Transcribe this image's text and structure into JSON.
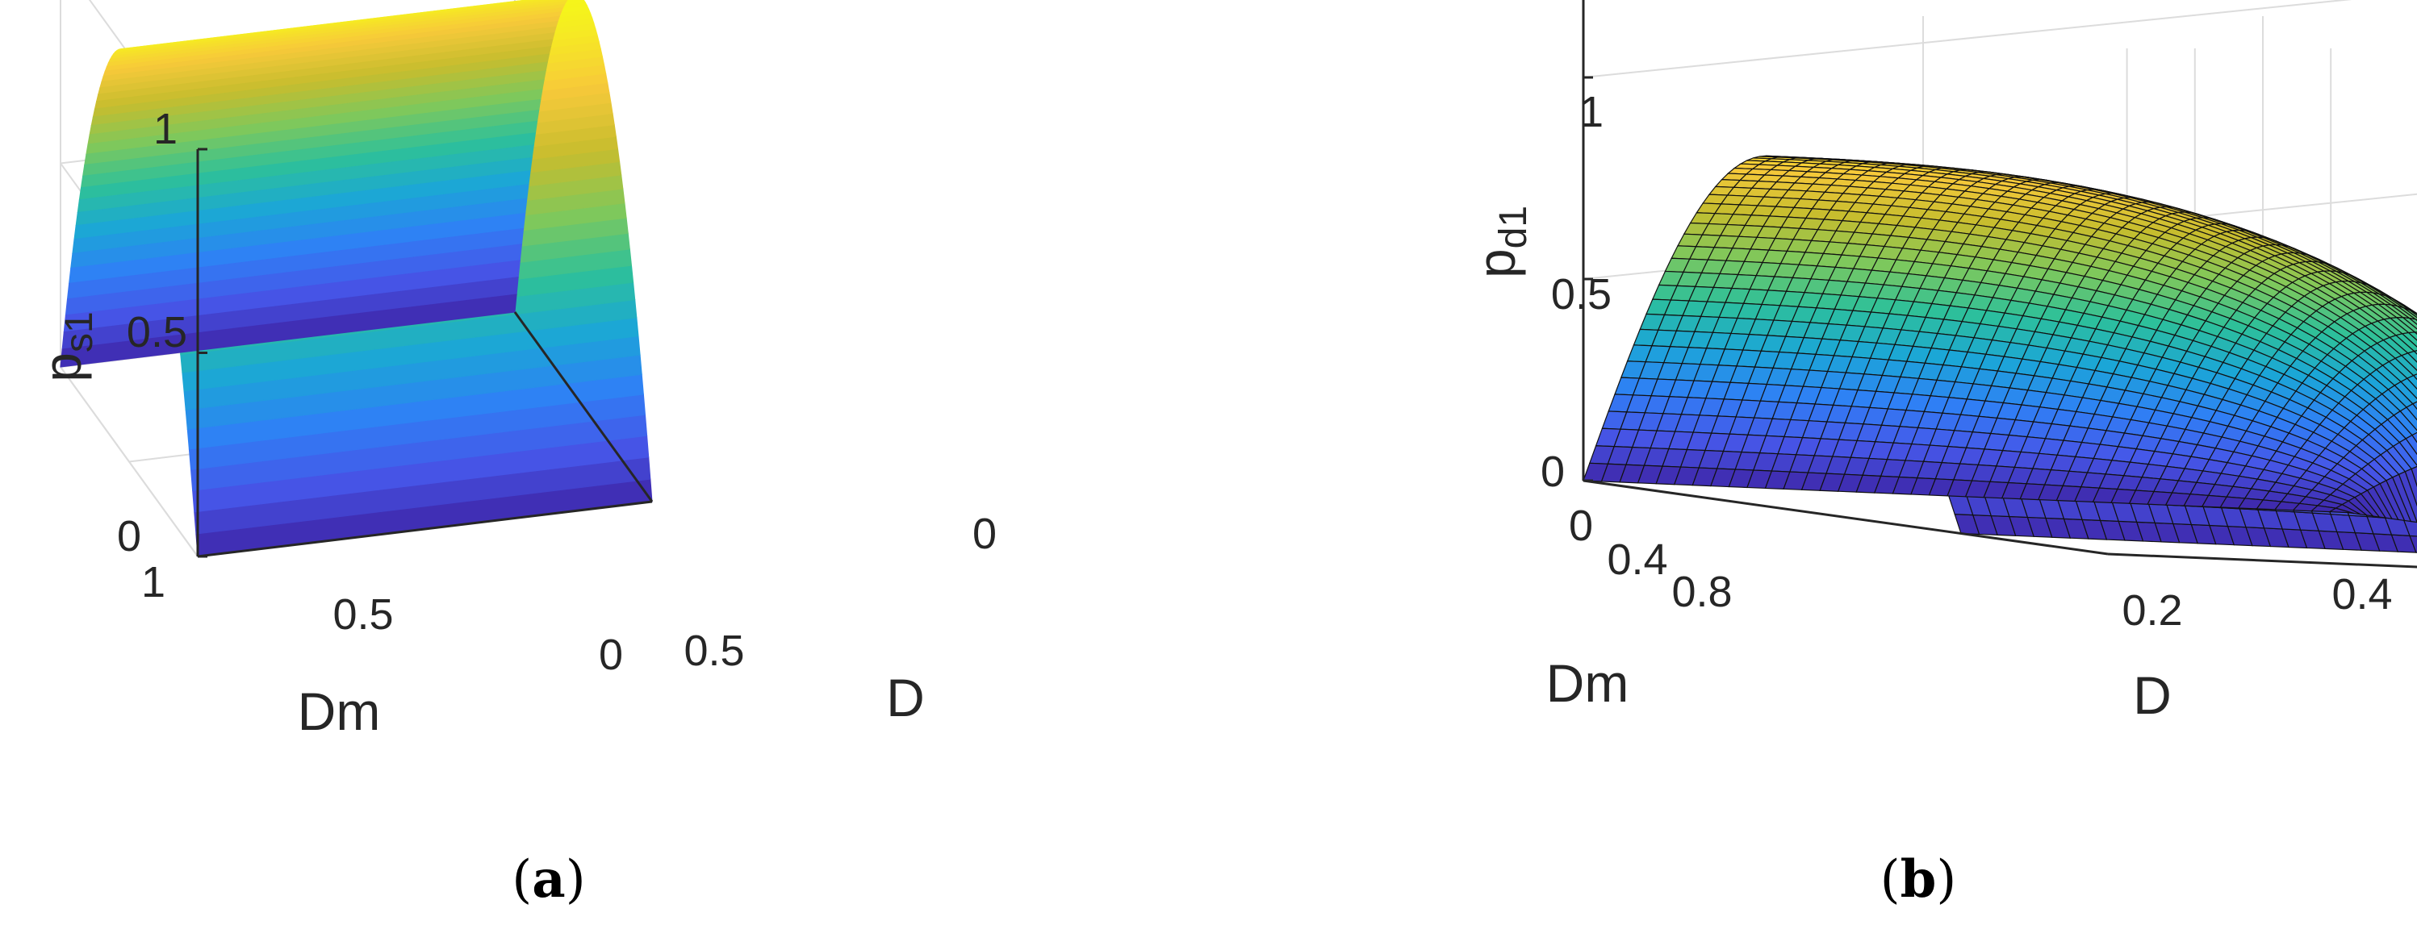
{
  "chart_data": [
    {
      "type": "surface",
      "caption": "a",
      "zlabel": "p",
      "zlabel_sub": "s1",
      "xlabel": "Dm",
      "ylabel": "D",
      "zticks": [
        "0",
        "0.5",
        "1"
      ],
      "xticks": [
        "1",
        "0.5",
        "0"
      ],
      "yticks": [
        "0.5",
        "0"
      ],
      "xlim": [
        0,
        1
      ],
      "ylim": [
        0,
        1
      ],
      "zlim": [
        0,
        1
      ],
      "grid": true,
      "colormap": "parula",
      "surface": {
        "equation_shape": "p_s1 = 4*D*(1-D), independent of Dm",
        "peak": {
          "D": 0.5,
          "p_s1": 1
        }
      }
    },
    {
      "type": "surface",
      "caption": "b",
      "zlabel": "p",
      "zlabel_sub": "d1",
      "xlabel": "Dm",
      "ylabel": "D",
      "zticks": [
        "0",
        "0.5",
        "1"
      ],
      "xticks": [
        "0",
        "0.4",
        "0.8"
      ],
      "yticks": [
        "0.2",
        "0.4"
      ],
      "xlim": [
        0,
        1
      ],
      "ylim": [
        0,
        0.45
      ],
      "zlim": [
        0,
        1.2
      ],
      "grid": true,
      "colormap": "parula",
      "mesh_edges": true,
      "surface": {
        "peak_value": 0.87
      }
    }
  ],
  "colors": {
    "axis": "#262626",
    "grid": "#dcdcdc",
    "parula": [
      "#3e26a8",
      "#4656e8",
      "#2f80f5",
      "#1ba6d7",
      "#2dc09a",
      "#7ec85c",
      "#c6bd2e",
      "#f7c93a",
      "#f5f51b"
    ]
  }
}
